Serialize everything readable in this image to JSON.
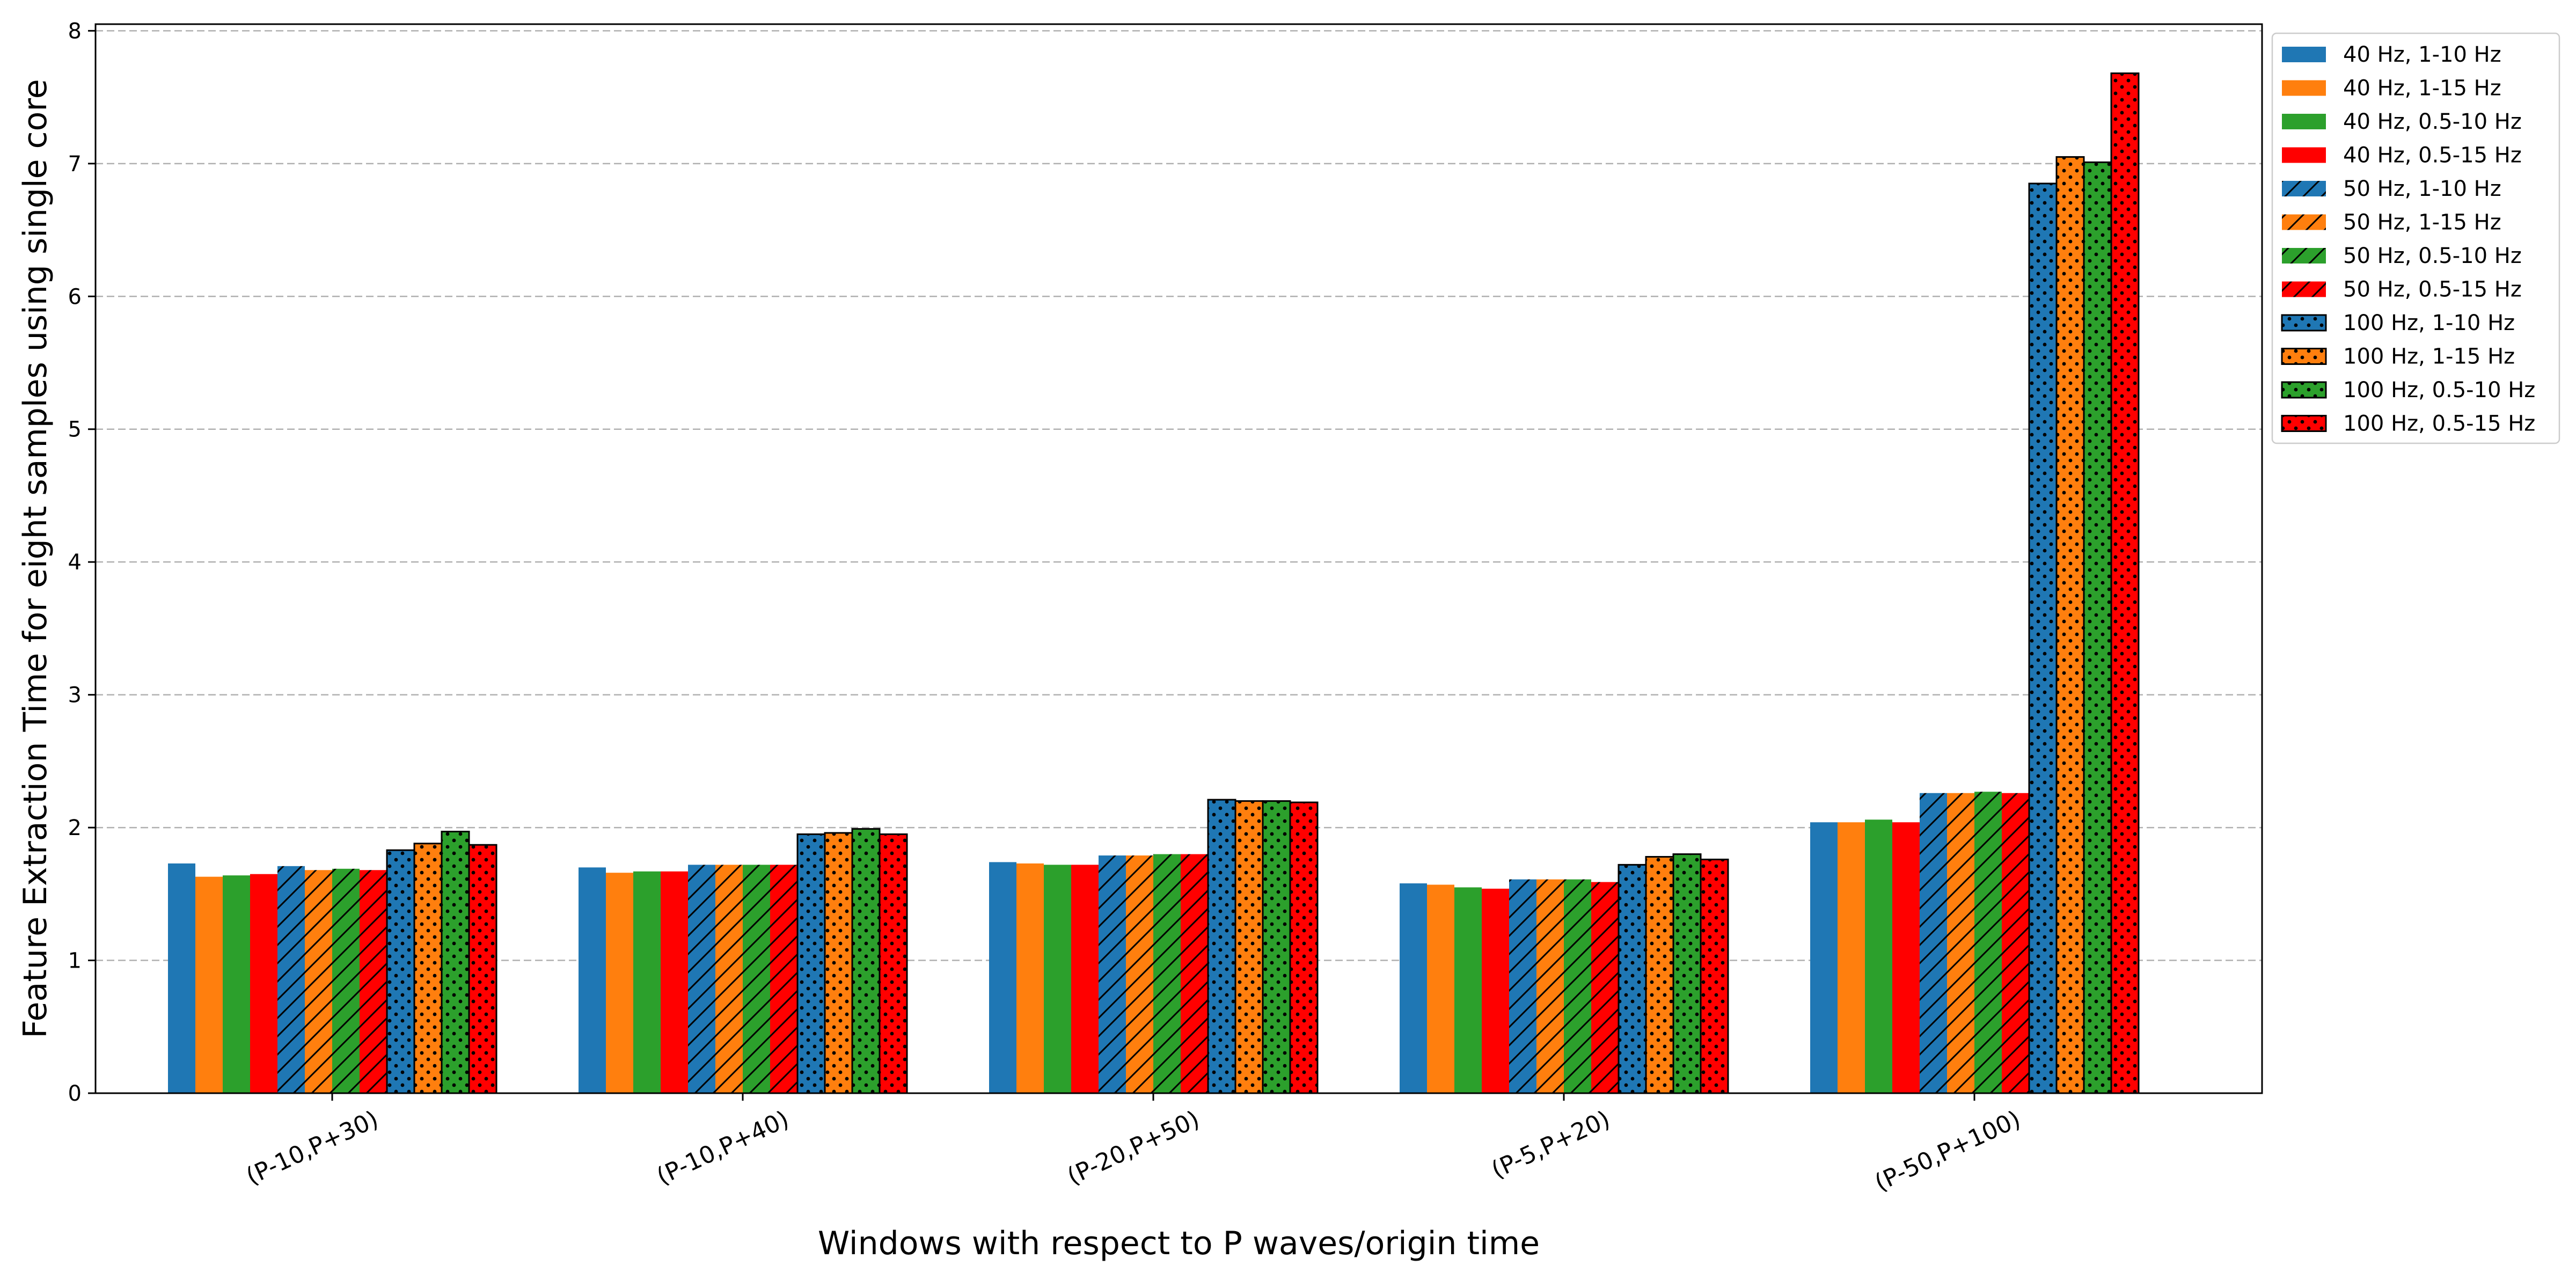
{
  "chart_data": {
    "type": "bar",
    "title": "",
    "xlabel": "Windows with respect to P waves/origin time",
    "ylabel": "Feature Extraction Time for eight samples using single core",
    "ylim": [
      0,
      8.05
    ],
    "yticks": [
      0,
      1,
      2,
      3,
      4,
      5,
      6,
      7,
      8
    ],
    "grid": "y-dashed",
    "legend_position": "outside-top-right",
    "categories": [
      "(P-10,P+30)",
      "(P-10,P+40)",
      "(P-20,P+50)",
      "(P-5,P+20)",
      "(P-50,P+100)"
    ],
    "series": [
      {
        "name": "40 Hz, 1-10 Hz",
        "color": "#1f77b4",
        "pattern": "solid",
        "values": [
          1.73,
          1.7,
          1.74,
          1.58,
          2.04
        ]
      },
      {
        "name": "40 Hz, 1-15 Hz",
        "color": "#ff7f0e",
        "pattern": "solid",
        "values": [
          1.63,
          1.66,
          1.73,
          1.57,
          2.04
        ]
      },
      {
        "name": "40 Hz, 0.5-10 Hz",
        "color": "#2ca02c",
        "pattern": "solid",
        "values": [
          1.64,
          1.67,
          1.72,
          1.55,
          2.06
        ]
      },
      {
        "name": "40 Hz, 0.5-15 Hz",
        "color": "#ff0000",
        "pattern": "solid",
        "values": [
          1.65,
          1.67,
          1.72,
          1.54,
          2.04
        ]
      },
      {
        "name": "50 Hz, 1-10 Hz",
        "color": "#1f77b4",
        "pattern": "hatch",
        "values": [
          1.71,
          1.72,
          1.79,
          1.61,
          2.26
        ]
      },
      {
        "name": "50 Hz, 1-15 Hz",
        "color": "#ff7f0e",
        "pattern": "hatch",
        "values": [
          1.68,
          1.72,
          1.79,
          1.61,
          2.26
        ]
      },
      {
        "name": "50 Hz, 0.5-10 Hz",
        "color": "#2ca02c",
        "pattern": "hatch",
        "values": [
          1.69,
          1.72,
          1.8,
          1.61,
          2.27
        ]
      },
      {
        "name": "50 Hz, 0.5-15 Hz",
        "color": "#ff0000",
        "pattern": "hatch",
        "values": [
          1.68,
          1.72,
          1.8,
          1.59,
          2.26
        ]
      },
      {
        "name": "100 Hz, 1-10 Hz",
        "color": "#1f77b4",
        "pattern": "dots",
        "values": [
          1.83,
          1.95,
          2.21,
          1.72,
          6.85
        ]
      },
      {
        "name": "100 Hz, 1-15 Hz",
        "color": "#ff7f0e",
        "pattern": "dots",
        "values": [
          1.88,
          1.96,
          2.2,
          1.78,
          7.05
        ]
      },
      {
        "name": "100 Hz, 0.5-10 Hz",
        "color": "#2ca02c",
        "pattern": "dots",
        "values": [
          1.97,
          1.99,
          2.2,
          1.8,
          7.01
        ]
      },
      {
        "name": "100 Hz, 0.5-15 Hz",
        "color": "#ff0000",
        "pattern": "dots",
        "values": [
          1.87,
          1.95,
          2.19,
          1.76,
          7.68
        ]
      }
    ]
  }
}
